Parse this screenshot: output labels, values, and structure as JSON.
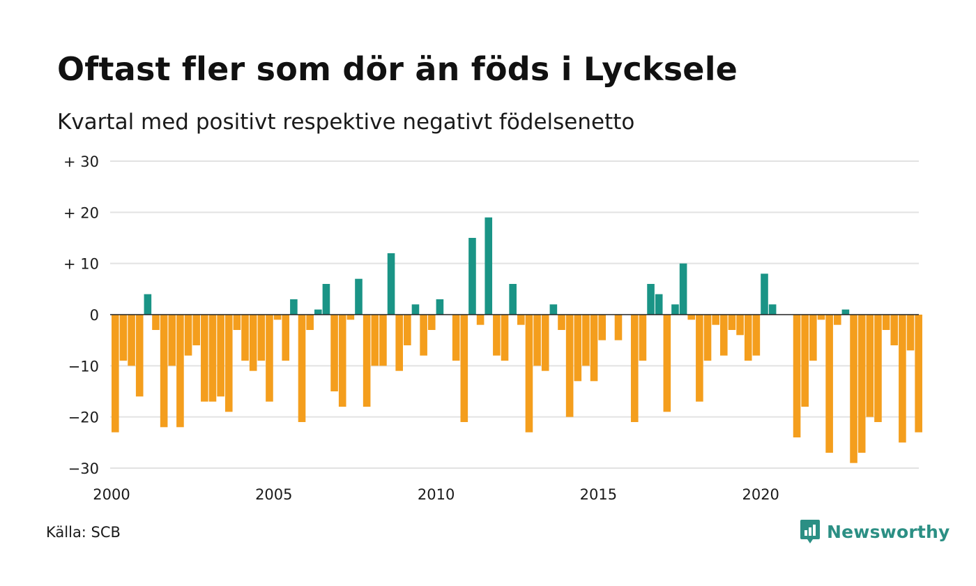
{
  "header": {
    "title": "Oftast fler som dör än föds i Lycksele",
    "subtitle": "Kvartal med positivt respektive negativt födelsenetto"
  },
  "footer": {
    "source": "Källa: SCB",
    "brand": "Newsworthy",
    "brand_icon": "newsworthy-logo-icon"
  },
  "colors": {
    "positive": "#1a9486",
    "negative": "#f49e1d",
    "grid": "#e2e2e2",
    "zero_line": "#222222",
    "brand": "#2b8f84"
  },
  "chart_data": {
    "type": "bar",
    "title": "Oftast fler som dör än föds i Lycksele",
    "subtitle": "Kvartal med positivt respektive negativt födelsenetto",
    "xlabel": "",
    "ylabel": "",
    "ylim": [
      -30,
      30
    ],
    "yticks": [
      30,
      20,
      10,
      0,
      -10,
      -20,
      -30
    ],
    "ytick_labels": [
      "+ 30",
      "+ 20",
      "+ 10",
      "0",
      "−10",
      "−20",
      "−30"
    ],
    "xtick_labels": [
      "2000",
      "2005",
      "2010",
      "2015",
      "2020"
    ],
    "grid": true,
    "legend": "none",
    "series": [
      {
        "values": [
          -23,
          -9,
          -10,
          -16,
          4,
          -3,
          -22,
          -10,
          -22,
          -8,
          -6,
          -17,
          -17,
          -16,
          -19,
          -3,
          -9,
          -11,
          -9,
          -17,
          -1,
          -9,
          3,
          -21,
          -3,
          1,
          6,
          -15,
          -18,
          -1,
          7,
          -18,
          -10,
          -10,
          12,
          -11,
          -6,
          2,
          -8,
          -3,
          3,
          0,
          -9,
          -21,
          15,
          -2,
          19,
          -8,
          -9,
          6,
          -2,
          -23,
          -10,
          -11,
          2,
          -3,
          -20,
          -13,
          -10,
          -13,
          -5,
          0,
          -5,
          0,
          -21,
          -9,
          6,
          4,
          -19,
          2,
          10,
          -1,
          -17,
          -9,
          -2,
          -8,
          -3,
          -4,
          -9,
          -8,
          8,
          2,
          0,
          0,
          -24,
          -18,
          -9,
          -1,
          -27,
          -2,
          1,
          -29,
          -27,
          -20,
          -21,
          -3,
          -6,
          -25,
          -7,
          -23
        ]
      }
    ]
  }
}
